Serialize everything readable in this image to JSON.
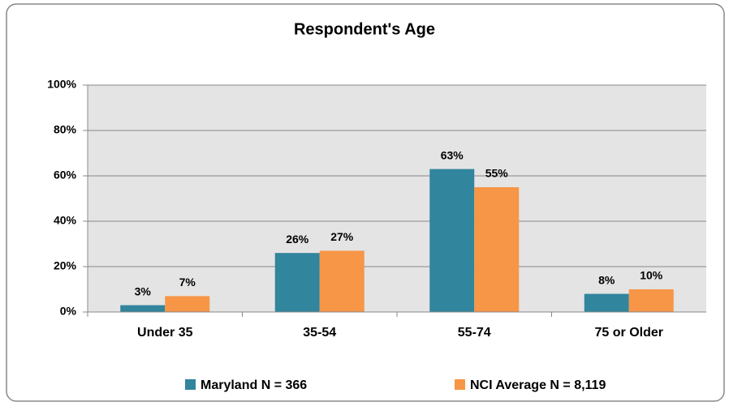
{
  "chart_data": {
    "type": "bar",
    "title": "Respondent's Age",
    "categories": [
      "Under 35",
      "35-54",
      "55-74",
      "75 or Older"
    ],
    "series": [
      {
        "name": "Maryland N = 366",
        "color": "#31859c",
        "values": [
          3,
          26,
          63,
          8
        ],
        "value_labels": [
          "3%",
          "26%",
          "63%",
          "8%"
        ]
      },
      {
        "name": "NCI Average N = 8,119",
        "color": "#f79646",
        "values": [
          7,
          27,
          55,
          10
        ],
        "value_labels": [
          "7%",
          "27%",
          "55%",
          "10%"
        ]
      }
    ],
    "ylim": [
      0,
      100
    ],
    "yticks": [
      {
        "value": 0,
        "label": "0%"
      },
      {
        "value": 20,
        "label": "20%"
      },
      {
        "value": 40,
        "label": "40%"
      },
      {
        "value": 60,
        "label": "60%"
      },
      {
        "value": 80,
        "label": "80%"
      },
      {
        "value": 100,
        "label": "100%"
      }
    ],
    "grid": true,
    "legend": "bottom"
  }
}
